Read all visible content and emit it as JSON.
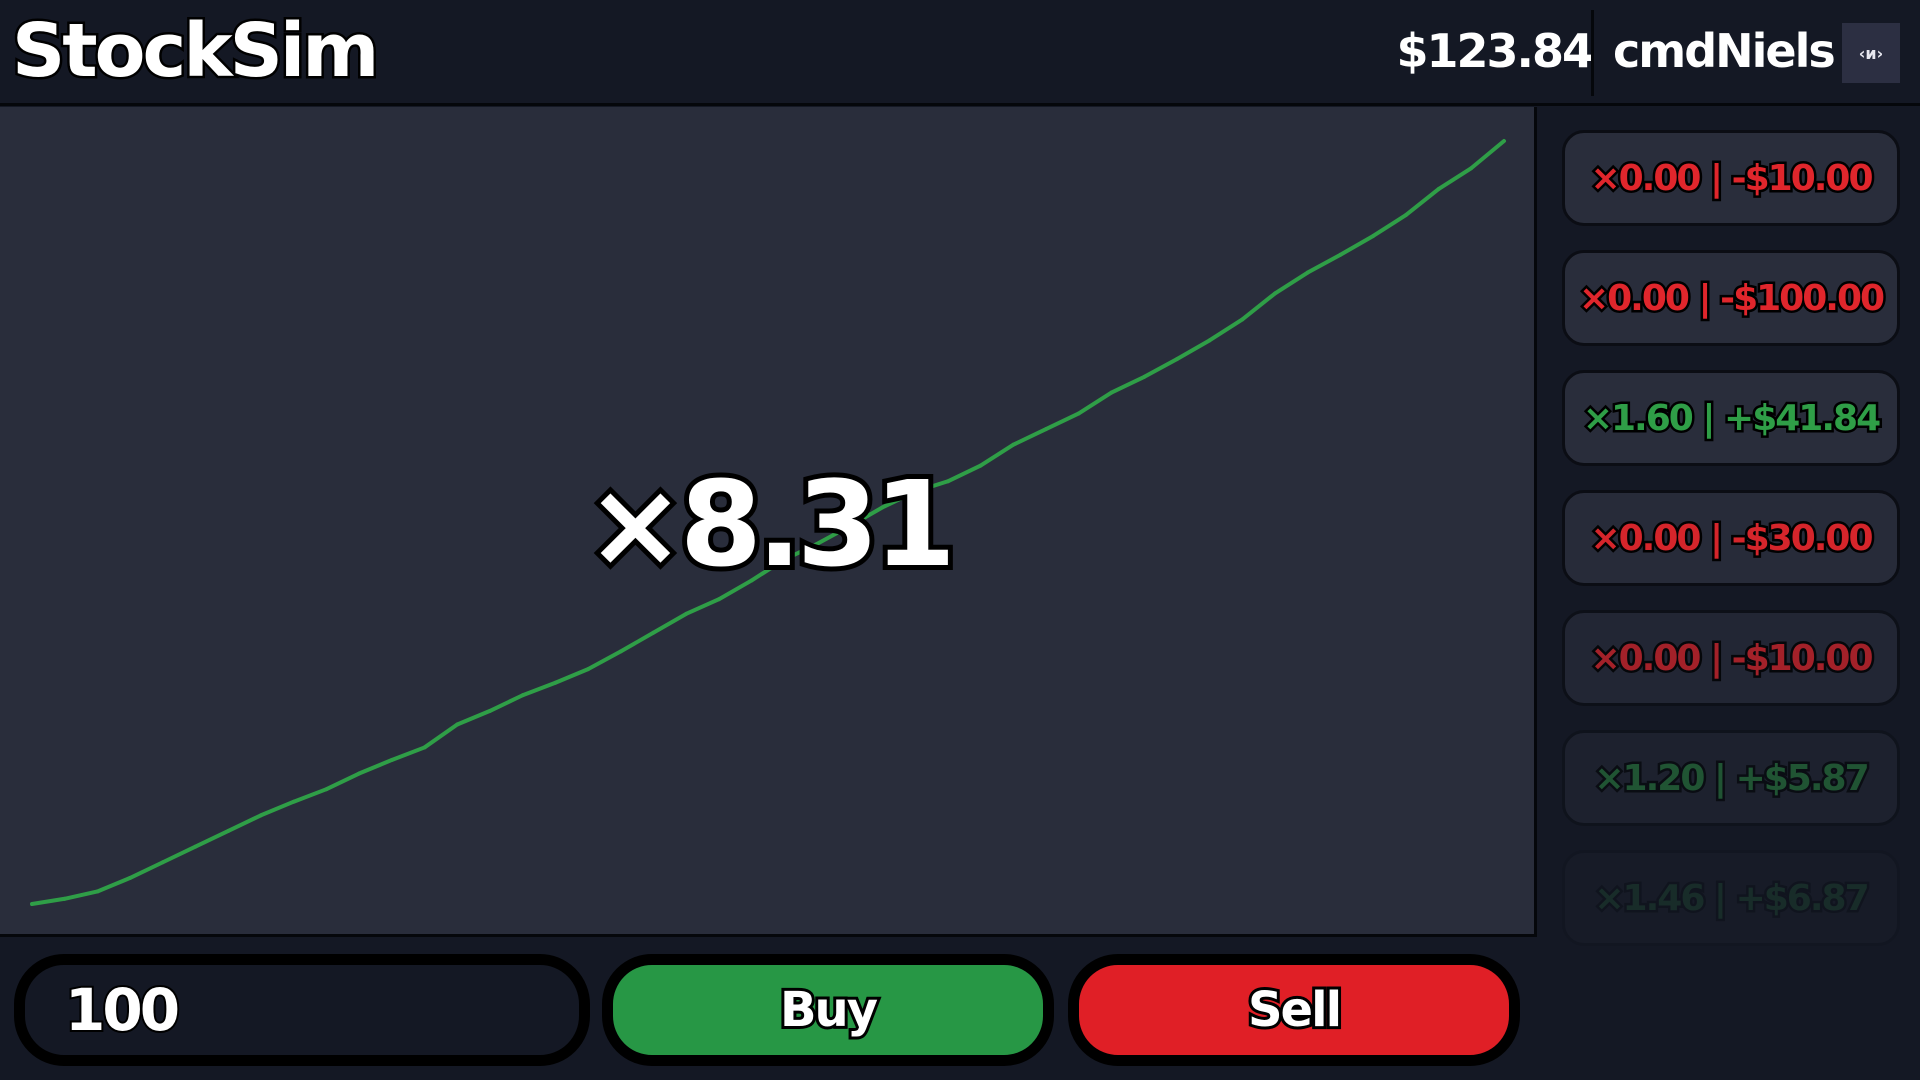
{
  "header": {
    "title": "StockSim",
    "balance": "$123.84",
    "username": "cmdNiels",
    "user_button_icon": "‹и›"
  },
  "chart": {
    "multiplier_label": "×8.31",
    "line_color_up": "#2f9e47",
    "line_color_down": "#d8262d",
    "values": [
      1.0,
      1.05,
      1.12,
      1.25,
      1.4,
      1.55,
      1.7,
      1.85,
      1.98,
      2.1,
      2.25,
      2.38,
      2.5,
      2.72,
      2.85,
      3.0,
      3.12,
      3.25,
      3.42,
      3.6,
      3.78,
      3.92,
      4.1,
      4.3,
      4.45,
      4.62,
      4.8,
      4.95,
      5.05,
      5.2,
      5.4,
      5.55,
      5.7,
      5.9,
      6.05,
      6.22,
      6.4,
      6.6,
      6.85,
      7.05,
      7.22,
      7.4,
      7.6,
      7.85,
      8.05,
      8.31
    ]
  },
  "history": [
    {
      "label": "×0.00 | -$10.00",
      "color": "#e0262c",
      "opacity": 1
    },
    {
      "label": "×0.00 | -$100.00",
      "color": "#e0262c",
      "opacity": 1
    },
    {
      "label": "×1.60 | +$41.84",
      "color": "#2f9e47",
      "opacity": 1
    },
    {
      "label": "×0.00 | -$30.00",
      "color": "#e0262c",
      "opacity": 0.95
    },
    {
      "label": "×0.00 | -$10.00",
      "color": "#e0262c",
      "opacity": 0.7
    },
    {
      "label": "×1.20 | +$5.87",
      "color": "#2f9e47",
      "opacity": 0.45
    },
    {
      "label": "×1.46 | +$6.87",
      "color": "#2f9e47",
      "opacity": 0.15
    }
  ],
  "controls": {
    "amount_value": "100",
    "buy_label": "Buy",
    "sell_label": "Sell"
  }
}
